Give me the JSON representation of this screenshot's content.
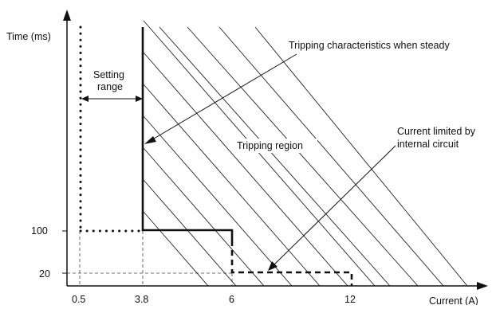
{
  "axes": {
    "y_label": "Time (ms)",
    "x_label": "Current (A)",
    "y_ticks": [
      "100",
      "20"
    ],
    "x_ticks": [
      "0.5",
      "3.8",
      "6",
      "12"
    ]
  },
  "annotations": {
    "setting_range_line1": "Setting",
    "setting_range_line2": "range",
    "tripping_characteristics": "Tripping characteristics when steady",
    "tripping_region": "Tripping region",
    "current_limited_line1": "Current limited by",
    "current_limited_line2": "internal circuit"
  },
  "colors": {
    "ink": "#111111",
    "background": "#ffffff"
  }
}
